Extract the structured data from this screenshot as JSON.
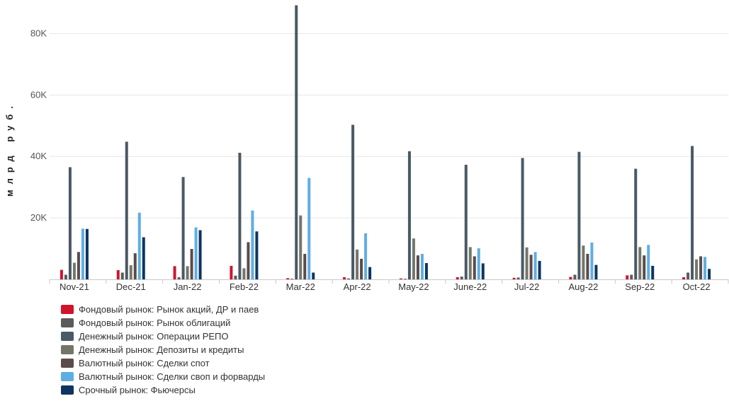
{
  "chart_data": {
    "type": "bar",
    "ylabel": "млрд руб.",
    "ylim": [
      0,
      90000
    ],
    "yticks": [
      20000,
      40000,
      60000,
      80000
    ],
    "ytick_labels": [
      "20K",
      "40K",
      "60K",
      "80K"
    ],
    "categories": [
      "Nov-21",
      "Dec-21",
      "Jan-22",
      "Feb-22",
      "Mar-22",
      "Apr-22",
      "May-22",
      "June-22",
      "Jul-22",
      "Aug-22",
      "Sep-22",
      "Oct-22"
    ],
    "legend_position": "bottom-left",
    "series": [
      {
        "name": "Фондовый рынок: Рынок акций, ДР и паев",
        "color": "#d0142c",
        "values": [
          3100,
          3000,
          4300,
          4400,
          400,
          700,
          300,
          700,
          500,
          800,
          1300,
          700
        ]
      },
      {
        "name": "Фондовый рынок: Рынок облигаций",
        "color": "#5b5b5b",
        "values": [
          1500,
          2200,
          700,
          1200,
          200,
          300,
          200,
          900,
          600,
          1500,
          1500,
          2200
        ]
      },
      {
        "name": "Денежный рынок: Операции РЕПО",
        "color": "#4a5966",
        "values": [
          36500,
          44800,
          33300,
          41200,
          89200,
          50300,
          41700,
          37300,
          39500,
          41500,
          36000,
          43400
        ]
      },
      {
        "name": "Денежный рынок: Депозиты и кредиты",
        "color": "#72776a",
        "values": [
          5400,
          4600,
          4300,
          3600,
          20800,
          9700,
          13300,
          10500,
          10400,
          11000,
          10500,
          6500
        ]
      },
      {
        "name": "Валютный рынок: Сделки спот",
        "color": "#5c4b4b",
        "values": [
          8900,
          8500,
          9900,
          12100,
          8300,
          6700,
          7800,
          7500,
          8000,
          8300,
          7800,
          7500
        ]
      },
      {
        "name": "Валютный рынок: Сделки своп и форварды",
        "color": "#5faee3",
        "values": [
          16500,
          21700,
          16900,
          22400,
          33000,
          15000,
          8300,
          10100,
          8900,
          12000,
          11200,
          7300
        ]
      },
      {
        "name": "Срочный рынок: Фьючерсы",
        "color": "#0d3560",
        "values": [
          16400,
          13700,
          16000,
          15600,
          2200,
          4000,
          5300,
          5200,
          6000,
          4700,
          4400,
          3400
        ]
      }
    ]
  }
}
